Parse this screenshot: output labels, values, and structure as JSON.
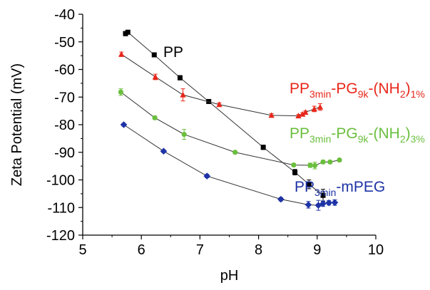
{
  "chart_data": {
    "type": "scatter",
    "xlabel": "pH",
    "ylabel": "Zeta Potential (mV)",
    "xlim": [
      5,
      10
    ],
    "ylim": [
      -120,
      -40
    ],
    "x_ticks": [
      5,
      6,
      7,
      8,
      9,
      10
    ],
    "y_ticks": [
      -40,
      -50,
      -60,
      -70,
      -80,
      -90,
      -100,
      -110,
      -120
    ],
    "x_tick_labels": [
      "5",
      "6",
      "7",
      "8",
      "9",
      "10"
    ],
    "y_tick_labels": [
      "-40",
      "-50",
      "-60",
      "-70",
      "-80",
      "-90",
      "-100",
      "-110",
      "-120"
    ],
    "grid": false,
    "series": [
      {
        "name": "PP",
        "color": "#000000",
        "marker": "square",
        "points": [
          {
            "x": 5.73,
            "y": -47,
            "err": 0.8
          },
          {
            "x": 5.77,
            "y": -46.5,
            "err": 0.6
          },
          {
            "x": 6.22,
            "y": -54.7,
            "err": 0.5
          },
          {
            "x": 6.66,
            "y": -63,
            "err": 0.8
          },
          {
            "x": 7.15,
            "y": -71.6,
            "err": 0.5
          },
          {
            "x": 8.08,
            "y": -88.2,
            "err": 0.8
          },
          {
            "x": 8.62,
            "y": -97.2,
            "err": 1.0
          },
          {
            "x": 8.86,
            "y": -101.6,
            "err": 1.6
          },
          {
            "x": 9.1,
            "y": -105.6,
            "err": 2.2
          }
        ]
      },
      {
        "name": "PP3min-PG9k-(NH2)1%",
        "label_parts": {
          "base": "PP",
          "sub1": "3min",
          "mid1": "-PG",
          "sub2": "9k",
          "mid2": "-(NH",
          "sub3": "2",
          "mid3": ")",
          "sub4": "1%"
        },
        "color": "#e8261a",
        "marker": "triangle",
        "points": [
          {
            "x": 5.66,
            "y": -54.5,
            "err": 0.8
          },
          {
            "x": 6.24,
            "y": -62.7,
            "err": 1.0
          },
          {
            "x": 6.71,
            "y": -69.2,
            "err": 2.2
          },
          {
            "x": 7.33,
            "y": -72.7,
            "err": 0.6
          },
          {
            "x": 8.22,
            "y": -76.6,
            "err": 0.6
          },
          {
            "x": 8.68,
            "y": -76.8,
            "err": 0.5
          },
          {
            "x": 8.75,
            "y": -76.2,
            "err": 0.5
          },
          {
            "x": 8.8,
            "y": -75.5,
            "err": 0.5
          },
          {
            "x": 8.95,
            "y": -74.3,
            "err": 1.0
          },
          {
            "x": 9.05,
            "y": -73.6,
            "err": 1.2
          }
        ]
      },
      {
        "name": "PP3min-PG9k-(NH2)3%",
        "label_parts": {
          "base": "PP",
          "sub1": "3min",
          "mid1": "-PG",
          "sub2": "9k",
          "mid2": "-(NH",
          "sub3": "2",
          "mid3": ")",
          "sub4": "3%"
        },
        "color": "#6abf3c",
        "marker": "circle",
        "points": [
          {
            "x": 5.65,
            "y": -68.2,
            "err": 1.2
          },
          {
            "x": 6.23,
            "y": -77.5,
            "err": 0.6
          },
          {
            "x": 6.73,
            "y": -83.5,
            "err": 1.8
          },
          {
            "x": 7.6,
            "y": -90,
            "err": 0.5
          },
          {
            "x": 8.6,
            "y": -94.6,
            "err": 0.5
          },
          {
            "x": 8.88,
            "y": -94.7,
            "err": 0.8
          },
          {
            "x": 8.96,
            "y": -94.8,
            "err": 1.2
          },
          {
            "x": 9.1,
            "y": -93.5,
            "err": 0.6
          },
          {
            "x": 9.22,
            "y": -93.5,
            "err": 0.5
          },
          {
            "x": 9.38,
            "y": -92.8,
            "err": 0.5
          }
        ]
      },
      {
        "name": "PP3min-mPEG",
        "label_parts": {
          "base": "PP",
          "sub1": "3min",
          "mid1": "-mPEG"
        },
        "color": "#1e33a6",
        "marker": "diamond",
        "points": [
          {
            "x": 5.7,
            "y": -80,
            "err": 0.5
          },
          {
            "x": 6.38,
            "y": -89.6,
            "err": 0.5
          },
          {
            "x": 7.12,
            "y": -98.6,
            "err": 0.6
          },
          {
            "x": 8.38,
            "y": -107,
            "err": 0.6
          },
          {
            "x": 8.85,
            "y": -109,
            "err": 1.2
          },
          {
            "x": 9.02,
            "y": -109.2,
            "err": 1.8
          },
          {
            "x": 9.1,
            "y": -108.6,
            "err": 1.0
          },
          {
            "x": 9.2,
            "y": -108.3,
            "err": 0.8
          },
          {
            "x": 9.3,
            "y": -108.2,
            "err": 1.0
          }
        ]
      }
    ]
  }
}
